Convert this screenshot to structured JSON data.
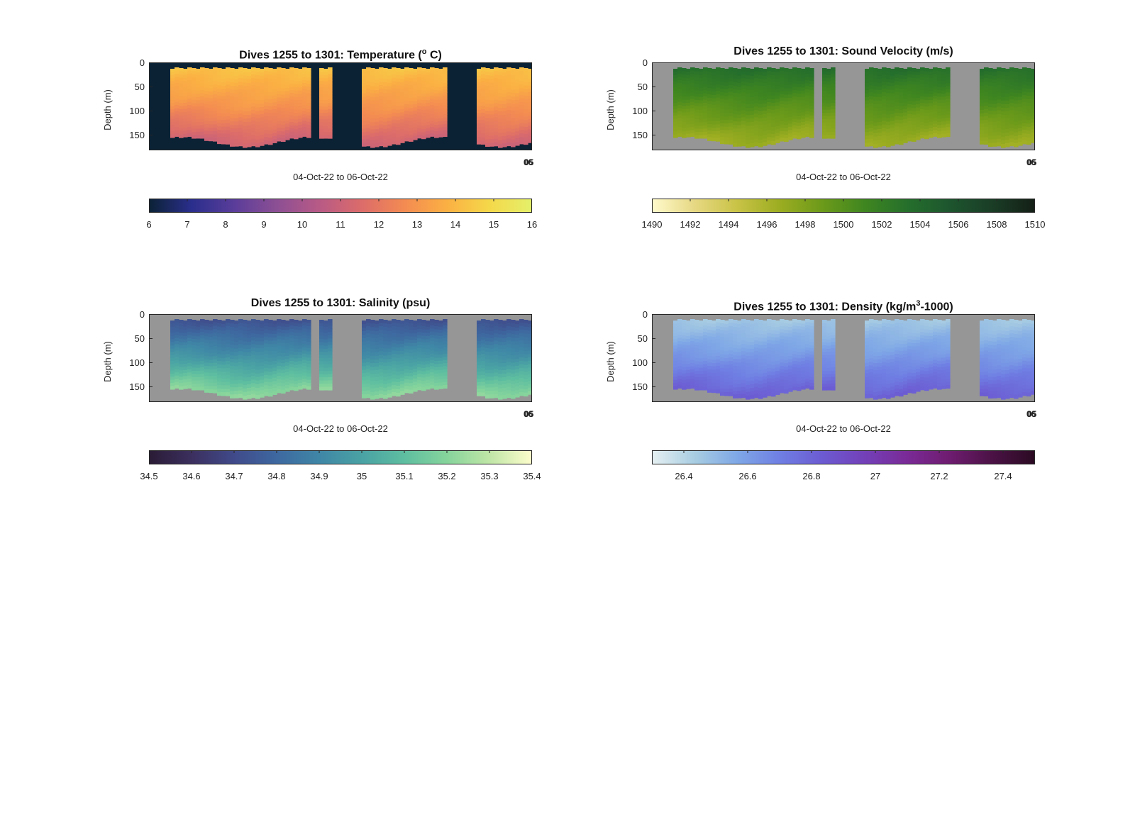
{
  "colors": {
    "temperature": [
      "#0b2235",
      "#2a2e8c",
      "#5a3d9a",
      "#8c4f94",
      "#b85a86",
      "#dc6c6a",
      "#f38b52",
      "#fbb043",
      "#f5d84a",
      "#e4f06a"
    ],
    "sound_velocity": [
      "#fffacc",
      "#e6d883",
      "#c9c346",
      "#9cad21",
      "#6c9a1a",
      "#3f8620",
      "#256f2c",
      "#1d552e",
      "#1a3d26",
      "#141f16"
    ],
    "salinity": [
      "#2a1b35",
      "#3b2f5e",
      "#404a8a",
      "#3e68a0",
      "#3f86a6",
      "#4aa2a4",
      "#5ebea0",
      "#86d49c",
      "#bfe6a6",
      "#fdfdcc"
    ],
    "density": [
      "#e6f0f2",
      "#a8cde2",
      "#7fa8e6",
      "#6f7fe3",
      "#6c5bd2",
      "#7340b8",
      "#7a2a96",
      "#6e1c6f",
      "#4b1245",
      "#2a0a22"
    ],
    "missing": "#969696",
    "temperature_missing": "#0b2235"
  },
  "chart_data": [
    {
      "type": "heatmap",
      "title": "Dives 1255 to 1301: Temperature (",
      "title_unit": "o",
      "title_suffix": " C)",
      "ylabel": "Depth (m)",
      "xlabel": "04-Oct-22 to 06-Oct-22",
      "x_tick_labels": [
        "06",
        "05"
      ],
      "y_ticks": [
        0,
        50,
        100,
        150
      ],
      "ylim": [
        0,
        180
      ],
      "colorbar": {
        "range": [
          6,
          16
        ],
        "ticks": [
          "6",
          "7",
          "8",
          "9",
          "10",
          "11",
          "12",
          "13",
          "14",
          "15",
          "16"
        ]
      },
      "value_profile": {
        "surface": 14.3,
        "mid": 13.0,
        "bottom": 11.1
      },
      "color_key": "temperature",
      "missing_key": "temperature_missing"
    },
    {
      "type": "heatmap",
      "title": "Dives 1255 to 1301: Sound Velocity (m/s)",
      "ylabel": "Depth (m)",
      "xlabel": "04-Oct-22 to 06-Oct-22",
      "x_tick_labels": [
        "06",
        "05"
      ],
      "y_ticks": [
        0,
        50,
        100,
        150
      ],
      "ylim": [
        0,
        180
      ],
      "colorbar": {
        "range": [
          1490,
          1510
        ],
        "ticks": [
          "1490",
          "1492",
          "1494",
          "1496",
          "1498",
          "1500",
          "1502",
          "1504",
          "1506",
          "1508",
          "1510"
        ]
      },
      "value_profile": {
        "surface": 1503.5,
        "mid": 1500.0,
        "bottom": 1496.5
      },
      "color_key": "sound_velocity",
      "missing_key": "missing"
    },
    {
      "type": "heatmap",
      "title": "Dives 1255 to 1301: Salinity (psu)",
      "ylabel": "Depth (m)",
      "xlabel": "04-Oct-22 to 06-Oct-22",
      "x_tick_labels": [
        "06",
        "05"
      ],
      "y_ticks": [
        0,
        50,
        100,
        150
      ],
      "ylim": [
        0,
        180
      ],
      "colorbar": {
        "range": [
          34.5,
          35.4
        ],
        "ticks": [
          "34.5",
          "34.6",
          "34.7",
          "34.8",
          "34.9",
          "35",
          "35.1",
          "35.2",
          "35.3",
          "35.4"
        ]
      },
      "value_profile": {
        "surface": 34.72,
        "mid": 34.95,
        "bottom": 35.22
      },
      "color_key": "salinity",
      "missing_key": "missing"
    },
    {
      "type": "heatmap",
      "title": "Dives 1255 to 1301: Density (kg/m",
      "title_unit": "3",
      "title_suffix": "-1000)",
      "ylabel": "Depth (m)",
      "xlabel": "04-Oct-22 to 06-Oct-22",
      "x_tick_labels": [
        "06",
        "05"
      ],
      "y_ticks": [
        0,
        50,
        100,
        150
      ],
      "ylim": [
        0,
        180
      ],
      "colorbar": {
        "range": [
          26.3,
          27.5
        ],
        "ticks": [
          "26.4",
          "26.6",
          "26.8",
          "27",
          "27.2",
          "27.4"
        ]
      },
      "value_profile": {
        "surface": 26.45,
        "mid": 26.62,
        "bottom": 26.82
      },
      "color_key": "density",
      "missing_key": "missing"
    }
  ]
}
